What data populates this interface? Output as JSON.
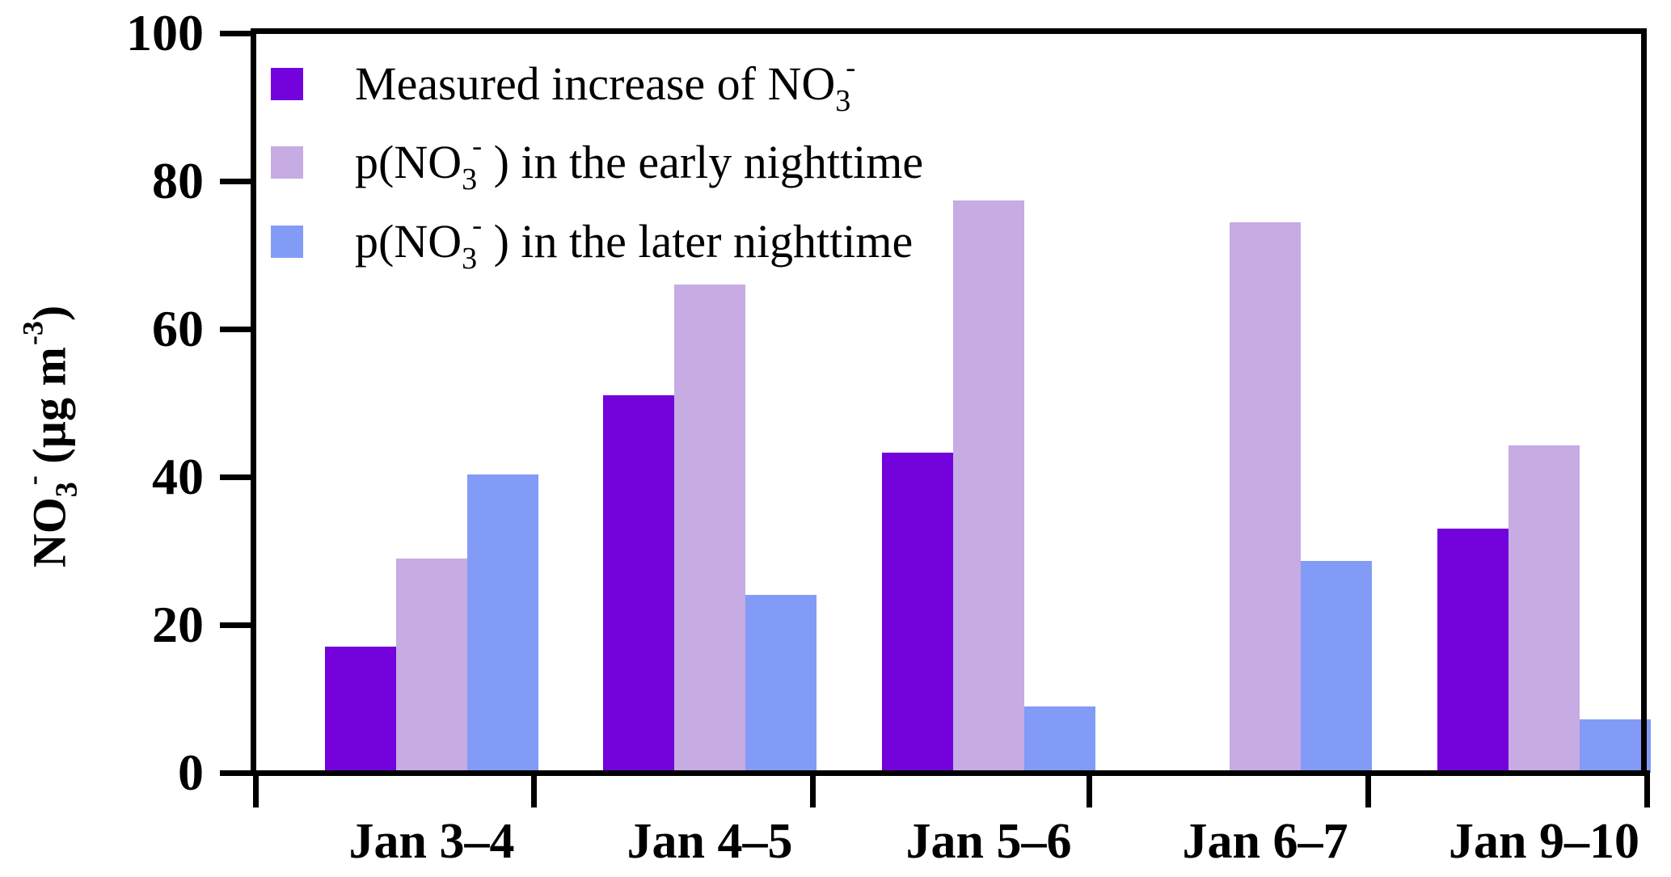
{
  "chart_data": {
    "type": "bar",
    "categories": [
      "Jan 3–4",
      "Jan 4–5",
      "Jan 5–6",
      "Jan 6–7",
      "Jan 9–10"
    ],
    "series": [
      {
        "name": "Measured increase of NO3-",
        "color": "#7302DC",
        "values": [
          17,
          51,
          43.3,
          null,
          33
        ]
      },
      {
        "name": "p(NO3-) in the early nighttime",
        "color": "#C7ABE3",
        "values": [
          29,
          66,
          77.4,
          74.4,
          44.3
        ]
      },
      {
        "name": "p(NO3-) in the later nighttime",
        "color": "#829BF6",
        "values": [
          40.3,
          24,
          9,
          28.6,
          7.2
        ]
      }
    ],
    "ylabel": "NO3- (µg m-3)",
    "ylim": [
      0,
      100
    ],
    "yticks": [
      0,
      20,
      40,
      60,
      80,
      100
    ],
    "grid": false,
    "legend_position": "top-left"
  },
  "legend": {
    "items": [
      {
        "color": "#7302DC",
        "prefix": "Measured increase of NO",
        "sub": "3",
        "sup": "-",
        "suffix": ""
      },
      {
        "color": "#C7ABE3",
        "prefix": "p(NO",
        "sub": "3",
        "sup": "-",
        "suffix": " ) in the early nighttime"
      },
      {
        "color": "#829BF6",
        "prefix": "p(NO",
        "sub": "3",
        "sup": "-",
        "suffix": " ) in the later nighttime"
      }
    ]
  },
  "y_axis": {
    "title": {
      "p1": "NO",
      "sub": "3",
      "sup": "-",
      "p2": " (µg m",
      "sup2": "-3",
      "p3": ")"
    },
    "tick_labels": [
      "0",
      "20",
      "40",
      "60",
      "80",
      "100"
    ]
  }
}
